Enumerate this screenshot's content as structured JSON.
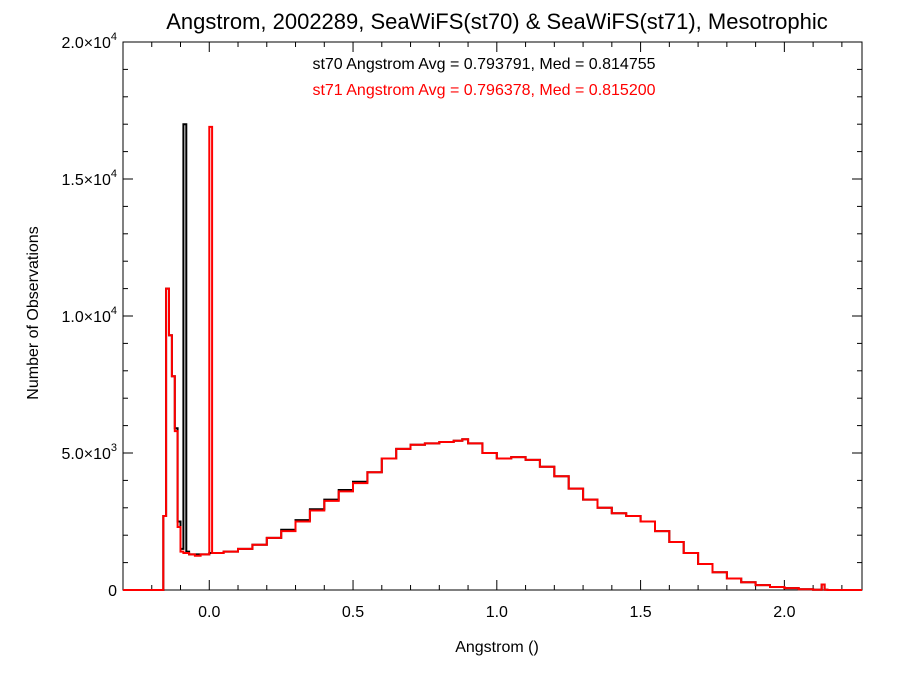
{
  "chart_data": {
    "type": "line",
    "title": "Angstrom, 2002289, SeaWiFS(st70) & SeaWiFS(st71), Mesotrophic",
    "xlabel": "Angstrom ()",
    "ylabel": "Number of Observations",
    "xlim": [
      -0.3,
      2.27
    ],
    "ylim": [
      0,
      20000
    ],
    "grid": false,
    "x_ticks": [
      {
        "value": 0.0,
        "label": "0.0"
      },
      {
        "value": 0.5,
        "label": "0.5"
      },
      {
        "value": 1.0,
        "label": "1.0"
      },
      {
        "value": 1.5,
        "label": "1.5"
      },
      {
        "value": 2.0,
        "label": "2.0"
      }
    ],
    "y_ticks": [
      {
        "value": 0,
        "base": "0",
        "exp": ""
      },
      {
        "value": 5000,
        "base": "5.0×10",
        "exp": "3"
      },
      {
        "value": 10000,
        "base": "1.0×10",
        "exp": "4"
      },
      {
        "value": 15000,
        "base": "1.5×10",
        "exp": "4"
      },
      {
        "value": 20000,
        "base": "2.0×10",
        "exp": "4"
      }
    ],
    "annotations": [
      {
        "text": "st70 Angstrom Avg = 0.793791, Med = 0.814755",
        "color": "#000000"
      },
      {
        "text": "st71 Angstrom Avg = 0.796378, Med = 0.815200",
        "color": "#ff0000"
      }
    ],
    "series": [
      {
        "color": "#000000",
        "points": [
          [
            -0.3,
            0
          ],
          [
            -0.165,
            0
          ],
          [
            -0.16,
            2700
          ],
          [
            -0.15,
            11000
          ],
          [
            -0.14,
            9300
          ],
          [
            -0.13,
            7800
          ],
          [
            -0.12,
            5900
          ],
          [
            -0.11,
            2500
          ],
          [
            -0.1,
            1500
          ],
          [
            -0.09,
            17000
          ],
          [
            -0.08,
            1400
          ],
          [
            -0.07,
            1300
          ],
          [
            -0.05,
            1300
          ],
          [
            -0.03,
            1300
          ],
          [
            -0.01,
            1300
          ],
          [
            0.0,
            1350
          ],
          [
            0.05,
            1400
          ],
          [
            0.1,
            1500
          ],
          [
            0.15,
            1650
          ],
          [
            0.2,
            1900
          ],
          [
            0.25,
            2200
          ],
          [
            0.3,
            2550
          ],
          [
            0.35,
            2950
          ],
          [
            0.4,
            3300
          ],
          [
            0.45,
            3650
          ],
          [
            0.5,
            3950
          ],
          [
            0.55,
            4300
          ],
          [
            0.6,
            4800
          ],
          [
            0.65,
            5150
          ],
          [
            0.7,
            5300
          ],
          [
            0.75,
            5350
          ],
          [
            0.8,
            5400
          ],
          [
            0.85,
            5450
          ],
          [
            0.88,
            5500
          ],
          [
            0.9,
            5350
          ],
          [
            0.95,
            5000
          ],
          [
            1.0,
            4800
          ],
          [
            1.05,
            4850
          ],
          [
            1.1,
            4750
          ],
          [
            1.15,
            4500
          ],
          [
            1.2,
            4150
          ],
          [
            1.25,
            3700
          ],
          [
            1.3,
            3300
          ],
          [
            1.35,
            3000
          ],
          [
            1.4,
            2800
          ],
          [
            1.45,
            2700
          ],
          [
            1.5,
            2500
          ],
          [
            1.55,
            2150
          ],
          [
            1.6,
            1750
          ],
          [
            1.65,
            1350
          ],
          [
            1.7,
            950
          ],
          [
            1.75,
            650
          ],
          [
            1.8,
            420
          ],
          [
            1.85,
            280
          ],
          [
            1.9,
            180
          ],
          [
            1.95,
            110
          ],
          [
            2.0,
            70
          ],
          [
            2.05,
            30
          ],
          [
            2.1,
            10
          ],
          [
            2.13,
            200
          ],
          [
            2.14,
            10
          ],
          [
            2.15,
            0
          ],
          [
            2.27,
            0
          ]
        ]
      },
      {
        "color": "#ff0000",
        "points": [
          [
            -0.3,
            0
          ],
          [
            -0.165,
            0
          ],
          [
            -0.16,
            2700
          ],
          [
            -0.15,
            11000
          ],
          [
            -0.14,
            9300
          ],
          [
            -0.13,
            7800
          ],
          [
            -0.12,
            5800
          ],
          [
            -0.11,
            2300
          ],
          [
            -0.1,
            1400
          ],
          [
            -0.09,
            1350
          ],
          [
            -0.07,
            1300
          ],
          [
            -0.05,
            1250
          ],
          [
            -0.03,
            1300
          ],
          [
            -0.01,
            1300
          ],
          [
            0.0,
            16900
          ],
          [
            0.01,
            1350
          ],
          [
            0.05,
            1400
          ],
          [
            0.1,
            1500
          ],
          [
            0.15,
            1650
          ],
          [
            0.2,
            1900
          ],
          [
            0.25,
            2150
          ],
          [
            0.3,
            2500
          ],
          [
            0.35,
            2900
          ],
          [
            0.4,
            3250
          ],
          [
            0.45,
            3600
          ],
          [
            0.5,
            3900
          ],
          [
            0.55,
            4300
          ],
          [
            0.6,
            4800
          ],
          [
            0.65,
            5150
          ],
          [
            0.7,
            5300
          ],
          [
            0.75,
            5350
          ],
          [
            0.8,
            5400
          ],
          [
            0.85,
            5450
          ],
          [
            0.88,
            5500
          ],
          [
            0.9,
            5350
          ],
          [
            0.95,
            5000
          ],
          [
            1.0,
            4800
          ],
          [
            1.05,
            4850
          ],
          [
            1.1,
            4750
          ],
          [
            1.15,
            4500
          ],
          [
            1.2,
            4150
          ],
          [
            1.25,
            3700
          ],
          [
            1.3,
            3300
          ],
          [
            1.35,
            3000
          ],
          [
            1.4,
            2800
          ],
          [
            1.45,
            2700
          ],
          [
            1.5,
            2500
          ],
          [
            1.55,
            2150
          ],
          [
            1.6,
            1750
          ],
          [
            1.65,
            1350
          ],
          [
            1.7,
            950
          ],
          [
            1.75,
            650
          ],
          [
            1.8,
            420
          ],
          [
            1.85,
            280
          ],
          [
            1.9,
            180
          ],
          [
            1.95,
            110
          ],
          [
            2.0,
            70
          ],
          [
            2.05,
            30
          ],
          [
            2.1,
            10
          ],
          [
            2.13,
            200
          ],
          [
            2.14,
            10
          ],
          [
            2.15,
            0
          ],
          [
            2.27,
            0
          ]
        ]
      }
    ]
  }
}
